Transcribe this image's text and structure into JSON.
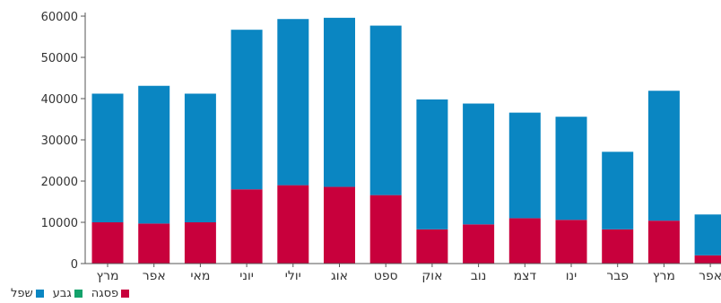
{
  "chart_data": {
    "type": "bar",
    "stacked": true,
    "categories": [
      "מרץ",
      "אפר",
      "מאי",
      "יוני",
      "יולי",
      "אוג",
      "ספט",
      "אוק",
      "נוב",
      "דצמ",
      "ינו",
      "פבר",
      "מרץ",
      "אפר"
    ],
    "series": [
      {
        "name": "פסגה",
        "color": "#c8003c",
        "values": [
          10000,
          9700,
          10000,
          18000,
          19000,
          18600,
          16600,
          8300,
          9500,
          11000,
          10600,
          8300,
          10400,
          2000
        ]
      },
      {
        "name": "גבע",
        "color": "#13a26b",
        "values": [
          0,
          0,
          0,
          0,
          0,
          0,
          0,
          0,
          0,
          0,
          0,
          0,
          0,
          0
        ]
      },
      {
        "name": "שפל",
        "color": "#0a86c2",
        "values": [
          31200,
          33400,
          31200,
          38700,
          40300,
          41000,
          41100,
          31500,
          29300,
          25600,
          25000,
          18800,
          31500,
          9900
        ]
      }
    ],
    "ylim": [
      0,
      60000
    ],
    "yticks": [
      "0",
      "10000",
      "20000",
      "30000",
      "40000",
      "50000",
      "60000"
    ],
    "grid": false,
    "legend_position": "bottom-left",
    "legend_order": [
      "פסגה",
      "גבע",
      "שפל"
    ]
  }
}
